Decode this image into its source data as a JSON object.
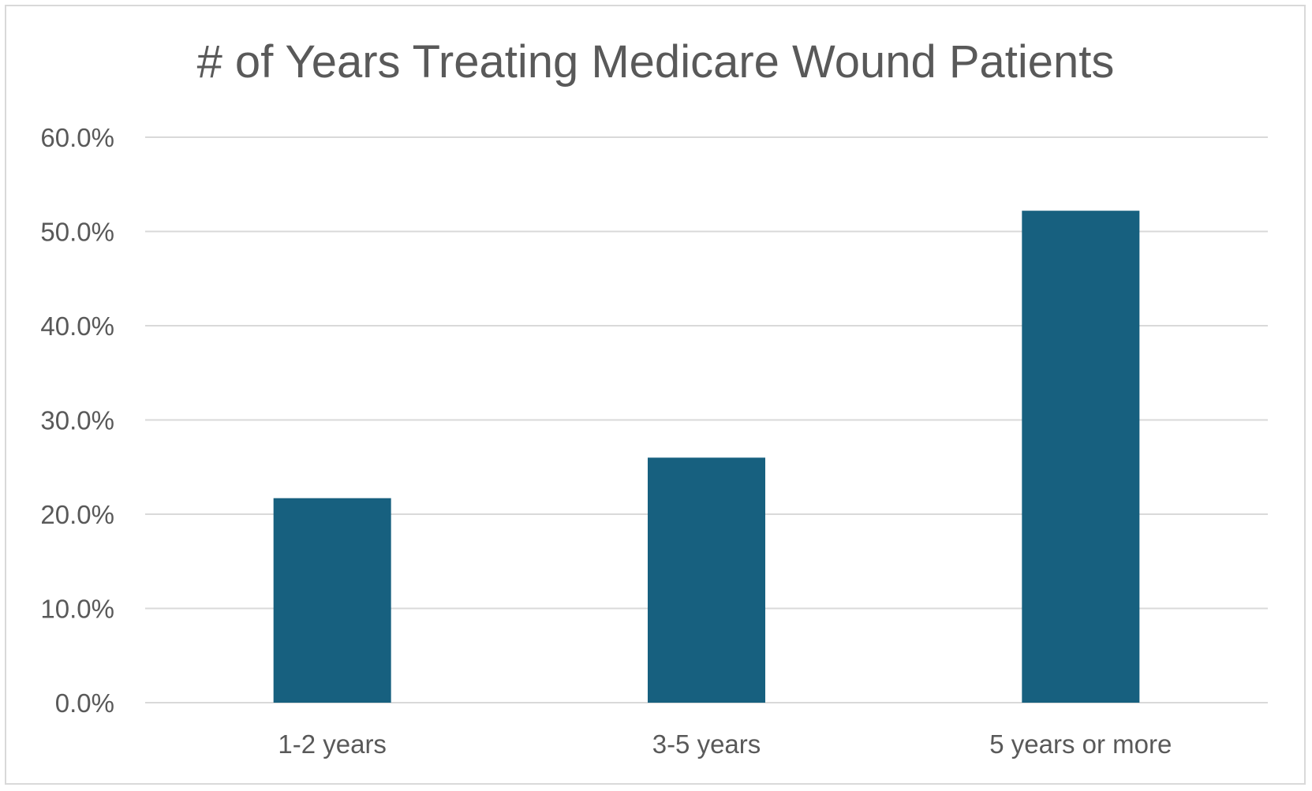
{
  "chart_data": {
    "type": "bar",
    "title": "# of Years Treating Medicare Wound Patients",
    "categories": [
      "1-2 years",
      "3-5 years",
      "5 years or more"
    ],
    "values": [
      21.7,
      26.0,
      52.2
    ],
    "ylim": [
      0,
      60
    ],
    "yticks": [
      {
        "value": 0,
        "label": "0.0%"
      },
      {
        "value": 10,
        "label": "10.0%"
      },
      {
        "value": 20,
        "label": "20.0%"
      },
      {
        "value": 30,
        "label": "30.0%"
      },
      {
        "value": 40,
        "label": "40.0%"
      },
      {
        "value": 50,
        "label": "50.0%"
      },
      {
        "value": 60,
        "label": "60.0%"
      }
    ],
    "grid": true,
    "legend": "none",
    "bar_color": "#17607f"
  }
}
